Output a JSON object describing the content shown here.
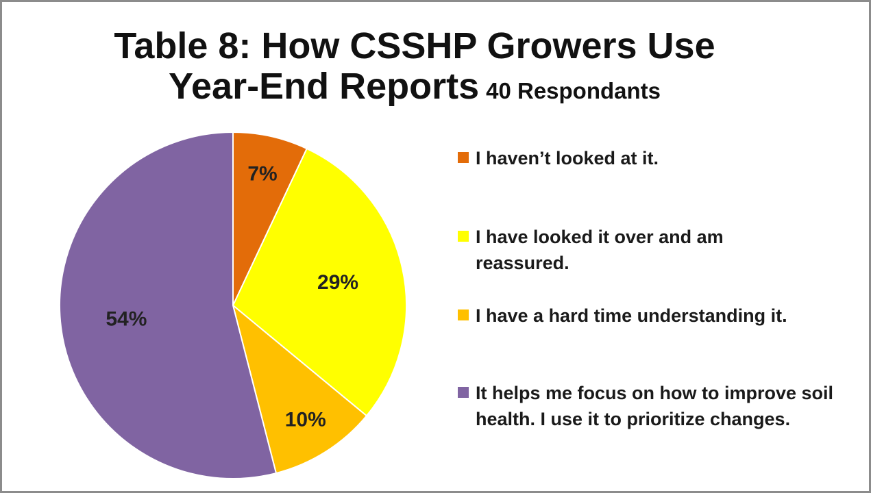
{
  "title": {
    "line1": "Table 8: How CSSHP Growers Use",
    "line2": "Year-End Reports",
    "subtitle": "40 Respondants"
  },
  "chart_data": {
    "type": "pie",
    "title": "Table 8: How CSSHP Growers Use Year-End Reports",
    "subtitle": "40 Respondants",
    "legend_position": "right",
    "slices": [
      {
        "label": "I haven’t looked at it.",
        "value": 7,
        "display": "7%",
        "color": "#E36C09"
      },
      {
        "label": "I have looked it over and am reassured.",
        "value": 29,
        "display": "29%",
        "color": "#FFFF00"
      },
      {
        "label": "I have a hard time understanding it.",
        "value": 10,
        "display": "10%",
        "color": "#FFC000"
      },
      {
        "label": "It helps me focus on how to improve soil health. I use it to prioritize changes.",
        "value": 54,
        "display": "54%",
        "color": "#8064A2"
      }
    ]
  }
}
